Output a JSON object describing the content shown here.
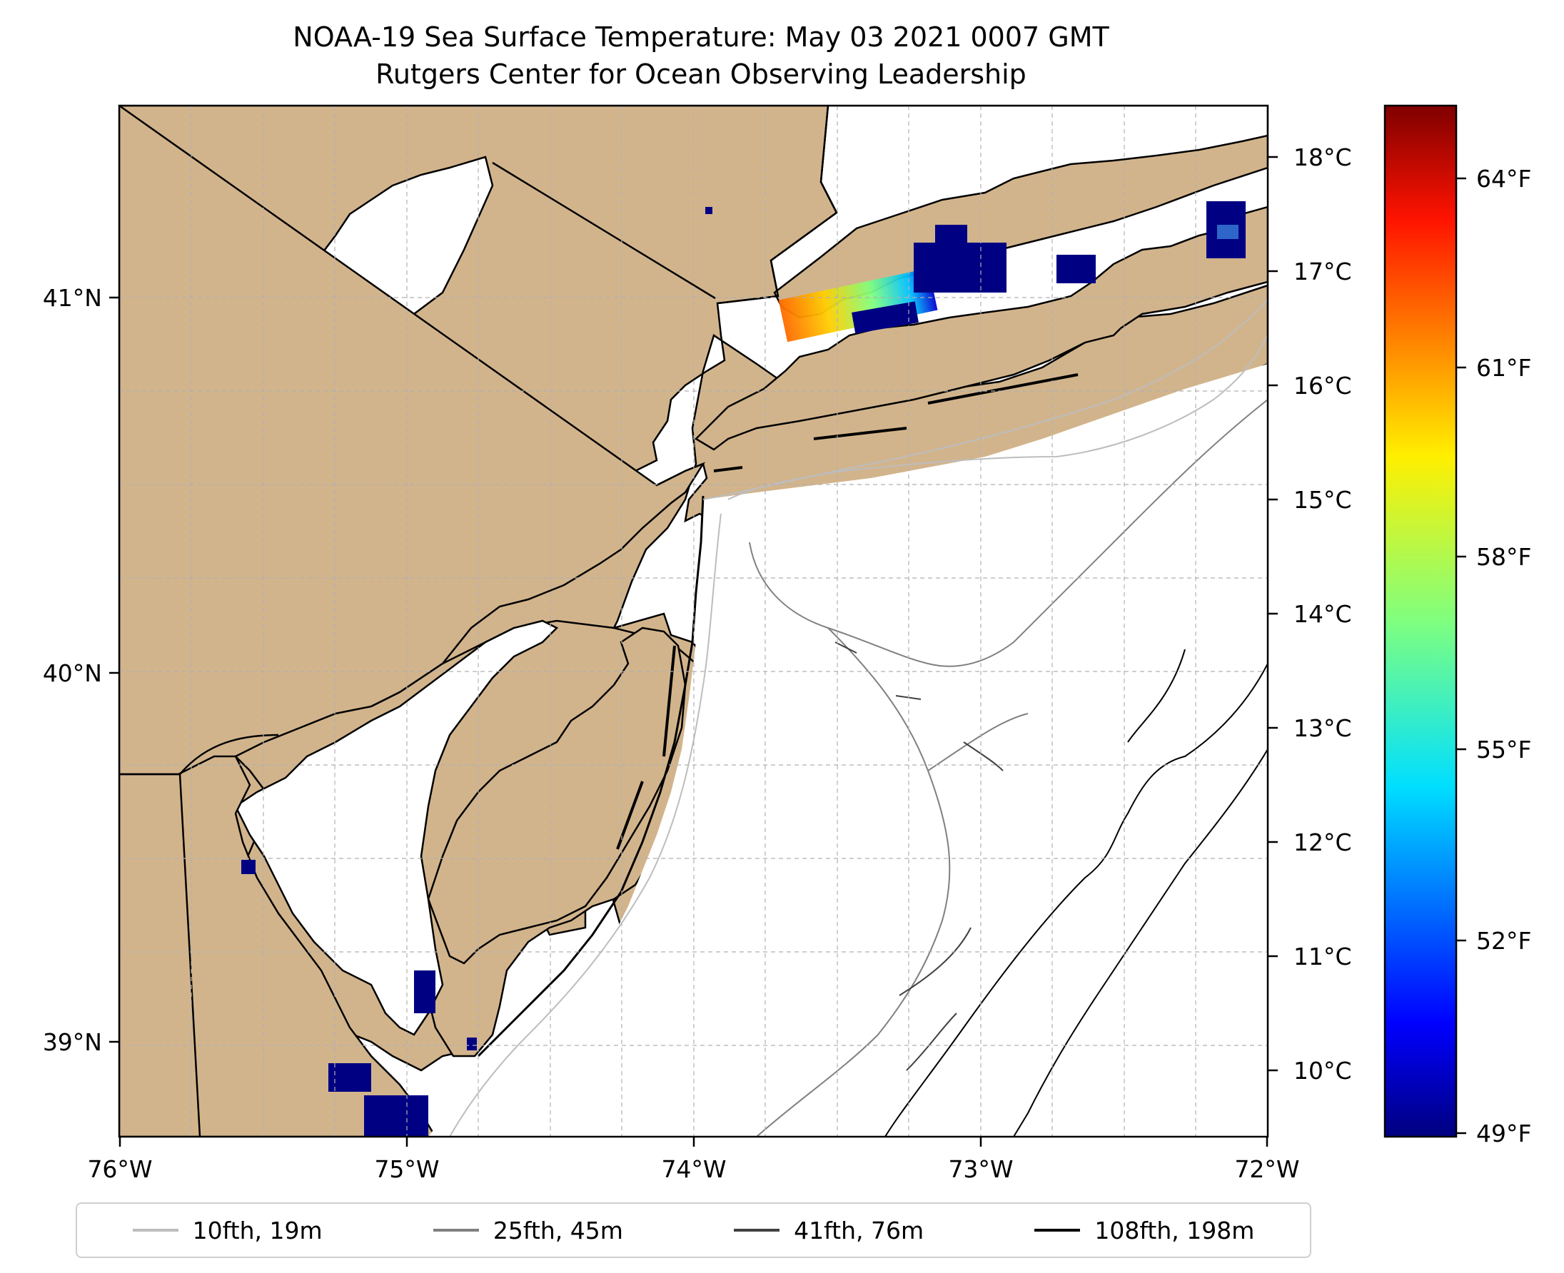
{
  "title": "NOAA-19 Sea Surface Temperature: May 03 2021 0007 GMT",
  "subtitle": "Rutgers Center for Ocean Observing Leadership",
  "map": {
    "lon_ticks": [
      "76°W",
      "75°W",
      "74°W",
      "73°W",
      "72°W"
    ],
    "lat_ticks": [
      "41°N",
      "40°N",
      "39°N"
    ],
    "extent": {
      "lon_min": -76.0,
      "lon_max": -72.0,
      "lat_min": 38.75,
      "lat_max": 41.5
    },
    "land_color": "#d2b48c",
    "water_color": "#ffffff",
    "grid": true
  },
  "colorbar": {
    "colormap": "jet",
    "celsius_ticks": [
      "18°C",
      "17°C",
      "16°C",
      "15°C",
      "14°C",
      "13°C",
      "12°C",
      "11°C",
      "10°C"
    ],
    "fahrenheit_ticks": [
      "64°F",
      "61°F",
      "58°F",
      "55°F",
      "52°F",
      "49°F"
    ]
  },
  "legend": [
    {
      "label": "10fth, 19m",
      "color": "#bdbdbd"
    },
    {
      "label": "25fth, 45m",
      "color": "#808080"
    },
    {
      "label": "41fth, 76m",
      "color": "#404040"
    },
    {
      "label": "108fth, 198m",
      "color": "#000000"
    }
  ]
}
